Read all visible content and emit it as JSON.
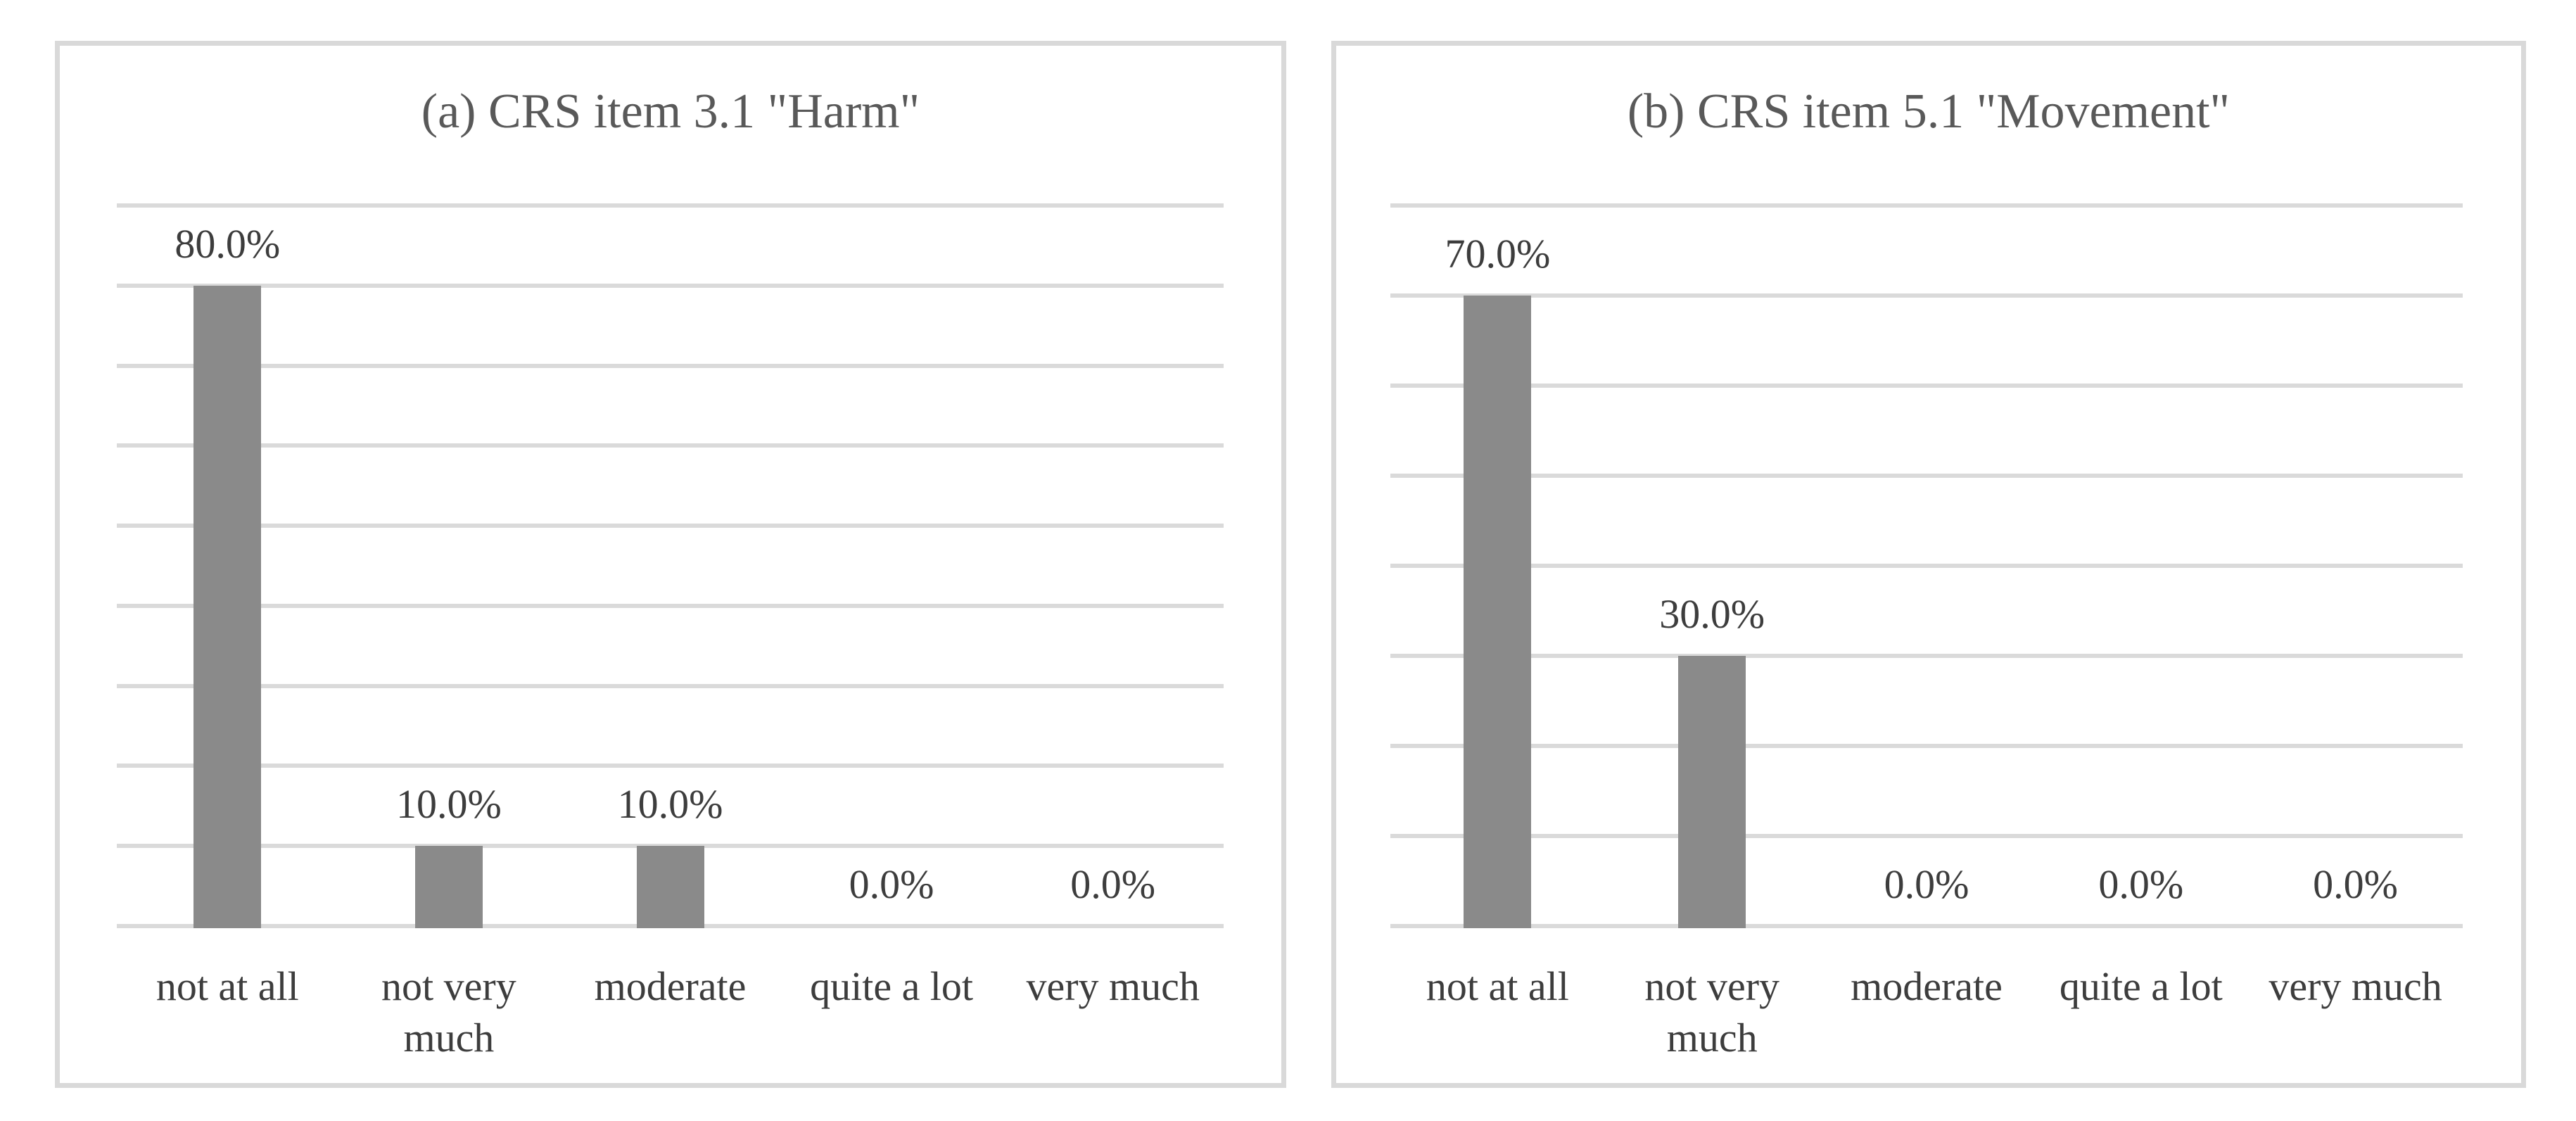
{
  "figure": {
    "background": "#ffffff",
    "panel_border_color": "#d9d9d9",
    "gridline_color": "#dadada",
    "bar_color": "#8a8a8a",
    "title_color": "#595959",
    "label_color": "#3d3d3d"
  },
  "chart_data": [
    {
      "type": "bar",
      "panel": "a",
      "title": "(a) CRS item 3.1 \"Harm\"",
      "categories": [
        "not at all",
        "not very much",
        "moderate",
        "quite a lot",
        "very much"
      ],
      "values": [
        80,
        10,
        10,
        0,
        0
      ],
      "value_labels": [
        "80.0%",
        "10.0%",
        "10.0%",
        "0.0%",
        "0.0%"
      ],
      "xlabel": "",
      "ylabel": "",
      "ylim": [
        0,
        90
      ],
      "grid_step": 10,
      "grid": true,
      "legend": "none",
      "y_tick_labels_shown": false,
      "bar_color": "#8a8a8a"
    },
    {
      "type": "bar",
      "panel": "b",
      "title": "(b) CRS item 5.1 \"Movement\"",
      "categories": [
        "not at all",
        "not very much",
        "moderate",
        "quite a lot",
        "very much"
      ],
      "values": [
        70,
        30,
        0,
        0,
        0
      ],
      "value_labels": [
        "70.0%",
        "30.0%",
        "0.0%",
        "0.0%",
        "0.0%"
      ],
      "xlabel": "",
      "ylabel": "",
      "ylim": [
        0,
        80
      ],
      "grid_step": 10,
      "grid": true,
      "legend": "none",
      "y_tick_labels_shown": false,
      "bar_color": "#8a8a8a"
    }
  ]
}
